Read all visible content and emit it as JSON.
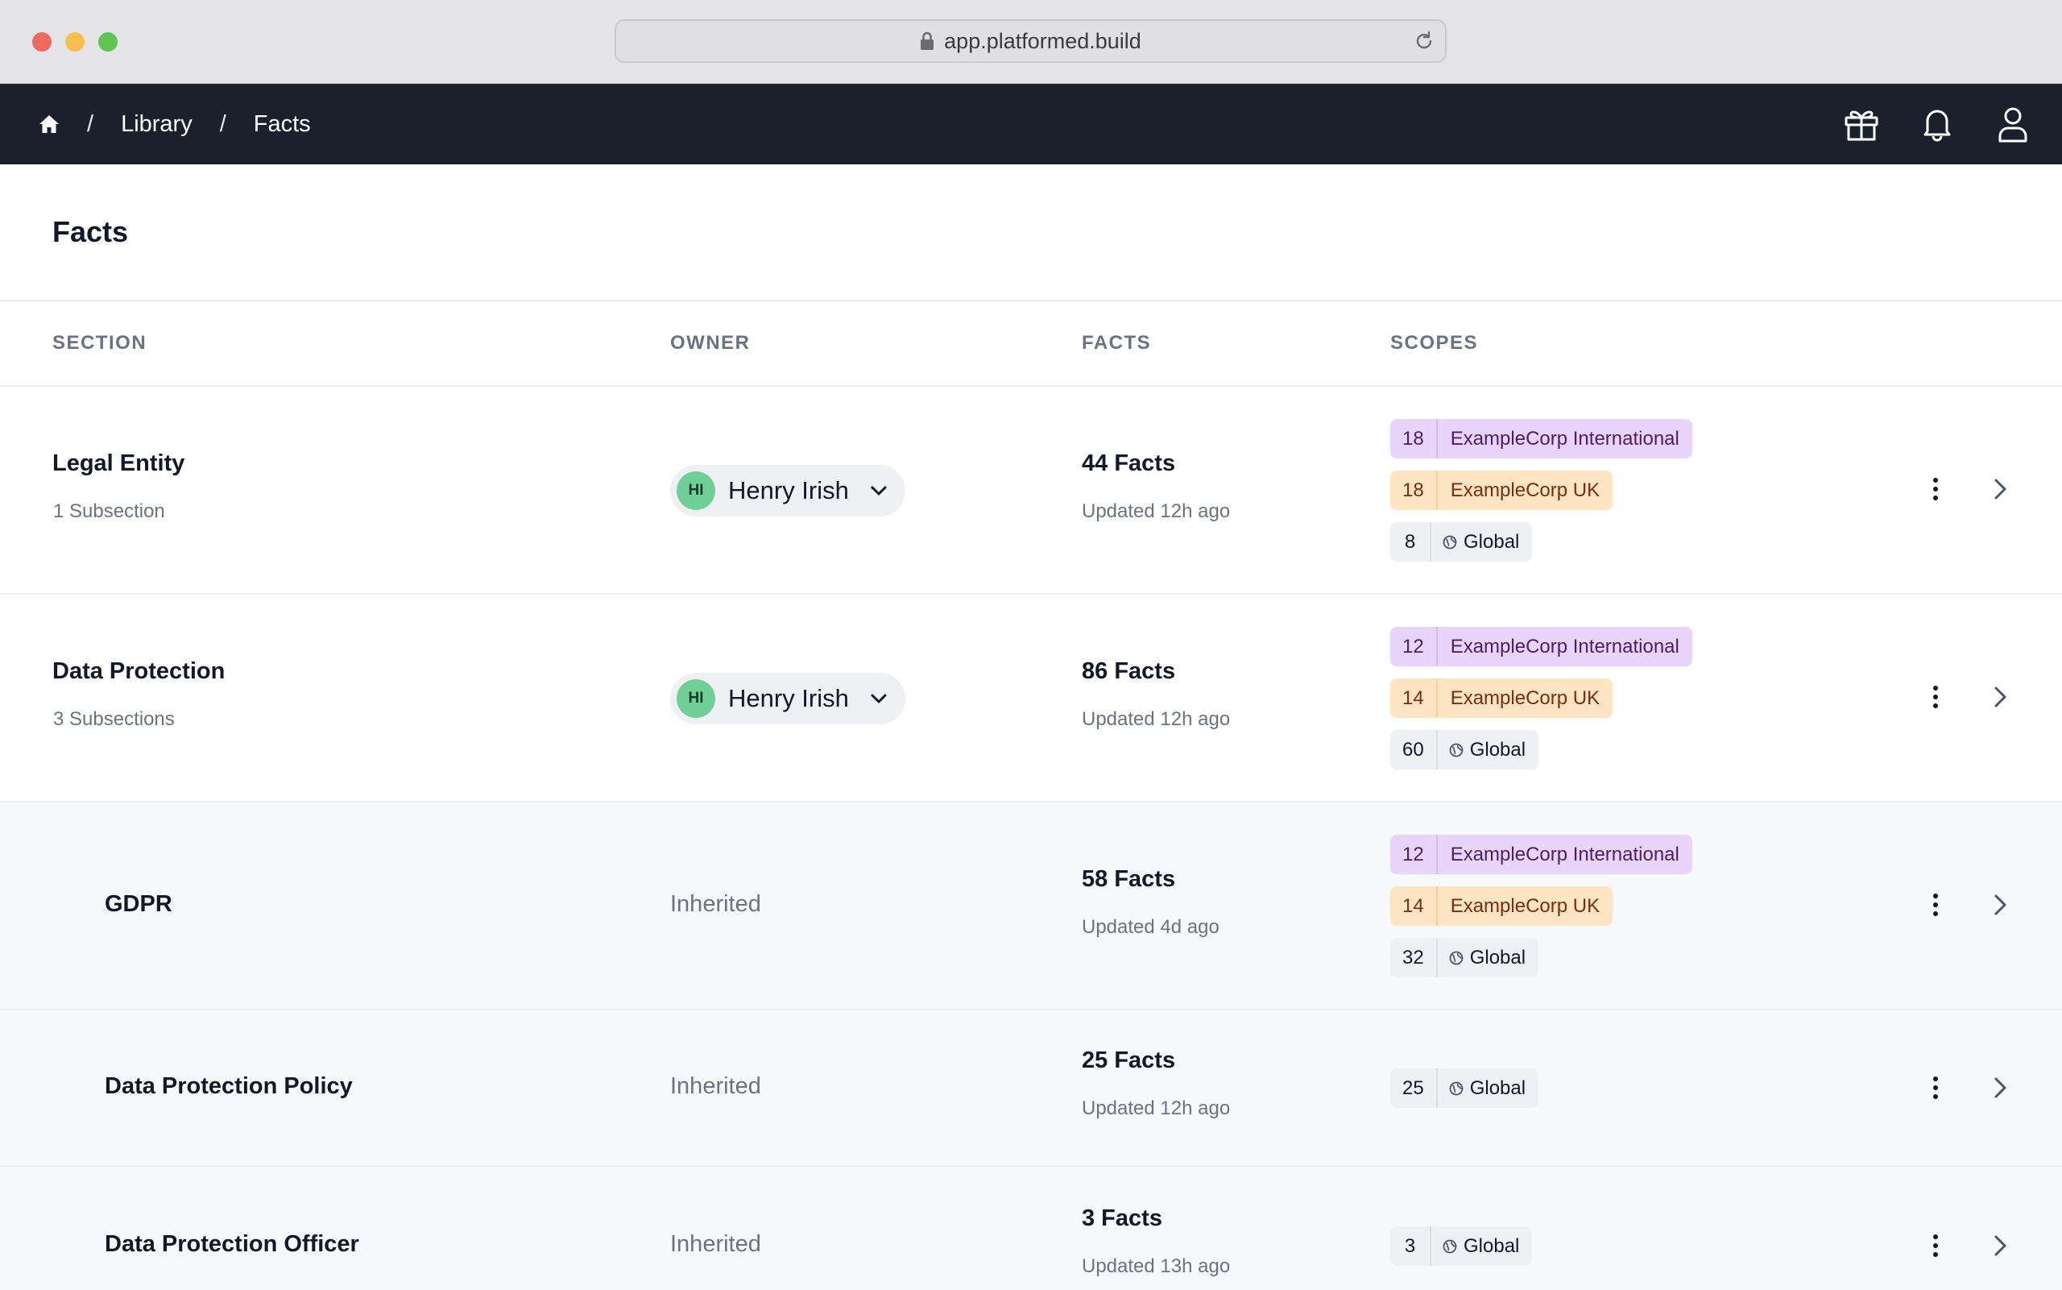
{
  "browser": {
    "url": "app.platformed.build"
  },
  "nav": {
    "crumbs": [
      "Library",
      "Facts"
    ],
    "separator": "/"
  },
  "page": {
    "title": "Facts"
  },
  "table": {
    "headers": {
      "section": "SECTION",
      "owner": "OWNER",
      "facts": "FACTS",
      "scopes": "SCOPES"
    },
    "rows": [
      {
        "section": "Legal Entity",
        "subtitle": "1 Subsection",
        "owner": {
          "initials": "HI",
          "name": "Henry Irish"
        },
        "facts": "44 Facts",
        "updated": "Updated 12h ago",
        "scopes": [
          {
            "count": "18",
            "label": "ExampleCorp International",
            "color": "purple"
          },
          {
            "count": "18",
            "label": "ExampleCorp UK",
            "color": "orange"
          },
          {
            "count": "8",
            "label": "Global",
            "color": "grey"
          }
        ]
      },
      {
        "section": "Data Protection",
        "subtitle": "3 Subsections",
        "owner": {
          "initials": "HI",
          "name": "Henry Irish"
        },
        "facts": "86 Facts",
        "updated": "Updated 12h ago",
        "scopes": [
          {
            "count": "12",
            "label": "ExampleCorp International",
            "color": "purple"
          },
          {
            "count": "14",
            "label": "ExampleCorp UK",
            "color": "orange"
          },
          {
            "count": "60",
            "label": "Global",
            "color": "grey"
          }
        ]
      },
      {
        "section": "GDPR",
        "owner_text": "Inherited",
        "facts": "58 Facts",
        "updated": "Updated 4d ago",
        "scopes": [
          {
            "count": "12",
            "label": "ExampleCorp International",
            "color": "purple"
          },
          {
            "count": "14",
            "label": "ExampleCorp UK",
            "color": "orange"
          },
          {
            "count": "32",
            "label": "Global",
            "color": "grey"
          }
        ]
      },
      {
        "section": "Data Protection Policy",
        "owner_text": "Inherited",
        "facts": "25 Facts",
        "updated": "Updated 12h ago",
        "scopes": [
          {
            "count": "25",
            "label": "Global",
            "color": "grey"
          }
        ]
      },
      {
        "section": "Data Protection Officer",
        "owner_text": "Inherited",
        "facts": "3 Facts",
        "updated": "Updated 13h ago",
        "scopes": [
          {
            "count": "3",
            "label": "Global",
            "color": "grey"
          }
        ]
      }
    ]
  },
  "colors": {
    "nav_bg": "#1b212c",
    "avatar": "#6fcf97",
    "scope_purple": "#e9d5fb",
    "scope_orange": "#fde4c2",
    "scope_grey": "#eef0f4"
  },
  "icons": [
    "lock-icon",
    "reload-icon",
    "home-icon",
    "gift-icon",
    "bell-icon",
    "user-icon",
    "chevron-down-icon",
    "globe-icon",
    "more-vertical-icon",
    "chevron-right-icon"
  ]
}
